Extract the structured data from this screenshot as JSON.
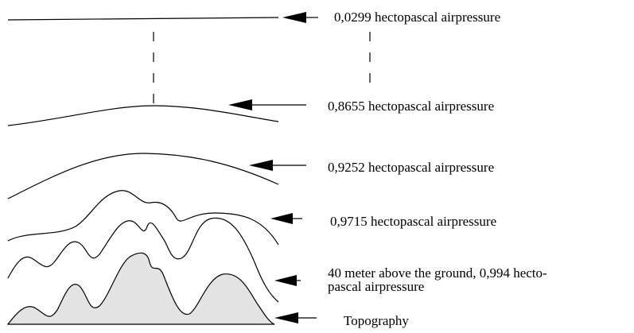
{
  "labels": [
    [
      "0,0299 hectopascal airpressure"
    ],
    [
      "0,8655 hectopascal airpressure"
    ],
    [
      "0,9252 hectopascal airpressure"
    ],
    [
      "0,9715 hectopascal airpressure"
    ],
    [
      "40 meter above the ground, 0,994 hecto-",
      "pascal airpressure"
    ],
    [
      "Topography"
    ]
  ]
}
